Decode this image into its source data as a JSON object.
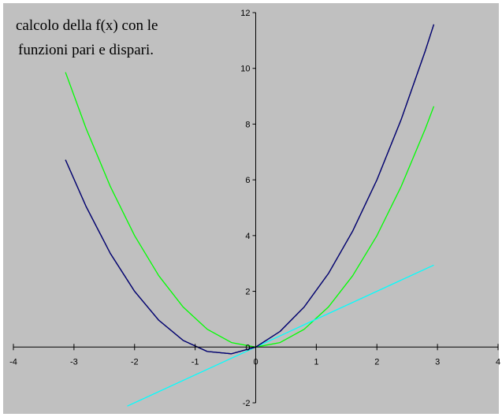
{
  "chart_data": {
    "type": "line",
    "title_lines": [
      "calcolo della f(x) con le",
      "funzioni pari e dispari."
    ],
    "xlabel": "",
    "ylabel": "",
    "xlim": [
      -4,
      4
    ],
    "ylim": [
      -2,
      12
    ],
    "x_ticks": [
      -4,
      -3,
      -2,
      -1,
      0,
      1,
      2,
      3,
      4
    ],
    "y_ticks": [
      -2,
      0,
      2,
      4,
      6,
      8,
      10,
      12
    ],
    "x_tick_labels": [
      "-4",
      "-3",
      "-2",
      "-1",
      "0",
      "1",
      "2",
      "3",
      "4"
    ],
    "y_tick_labels": [
      "-2",
      "0",
      "2",
      "4",
      "6",
      "8",
      "10",
      "12"
    ],
    "grid": false,
    "legend": "none",
    "plot_background": "#c0c0c0",
    "series": [
      {
        "color": "#00ff00",
        "x": [
          -3.14,
          -2.8,
          -2.4,
          -2.0,
          -1.6,
          -1.2,
          -0.8,
          -0.4,
          0.0,
          0.4,
          0.8,
          1.2,
          1.6,
          2.0,
          2.4,
          2.8,
          2.94
        ],
        "y": [
          9.86,
          7.84,
          5.76,
          4.0,
          2.56,
          1.44,
          0.64,
          0.16,
          0.0,
          0.16,
          0.64,
          1.44,
          2.56,
          4.0,
          5.76,
          7.84,
          8.64
        ]
      },
      {
        "color": "#00ffff",
        "x": [
          -2.12,
          2.94
        ],
        "y": [
          -2.12,
          2.94
        ]
      },
      {
        "color": "#ffff66",
        "x": [
          -3.14,
          -2.8,
          -2.4,
          -2.0,
          -1.6,
          -1.2,
          -0.8,
          -0.4,
          0.0,
          0.4,
          0.8,
          1.2,
          1.6,
          2.0,
          2.4,
          2.8,
          2.94
        ],
        "y": [
          6.72,
          5.04,
          3.36,
          2.0,
          0.96,
          0.24,
          -0.16,
          -0.24,
          0.0,
          0.56,
          1.44,
          2.64,
          4.16,
          6.0,
          8.16,
          10.64,
          11.58
        ]
      },
      {
        "color": "#000000",
        "x": [
          -3.14,
          -2.8,
          -2.4,
          -2.0,
          -1.6,
          -1.2,
          -0.8,
          -0.4,
          0.0,
          0.4,
          0.8,
          1.2,
          1.6,
          2.0,
          2.4,
          2.8,
          2.94
        ],
        "y": [
          6.72,
          5.04,
          3.36,
          2.0,
          0.96,
          0.24,
          -0.16,
          -0.24,
          0.0,
          0.56,
          1.44,
          2.64,
          4.16,
          6.0,
          8.16,
          10.64,
          11.58
        ]
      },
      {
        "color": "#000080",
        "x": [
          -3.14,
          -2.8,
          -2.4,
          -2.0,
          -1.6,
          -1.2,
          -0.8,
          -0.4,
          0.0,
          0.4,
          0.8,
          1.2,
          1.6,
          2.0,
          2.4,
          2.8,
          2.94
        ],
        "y": [
          6.72,
          5.04,
          3.36,
          2.0,
          0.96,
          0.24,
          -0.16,
          -0.24,
          0.0,
          0.56,
          1.44,
          2.64,
          4.16,
          6.0,
          8.16,
          10.64,
          11.58
        ]
      }
    ]
  }
}
